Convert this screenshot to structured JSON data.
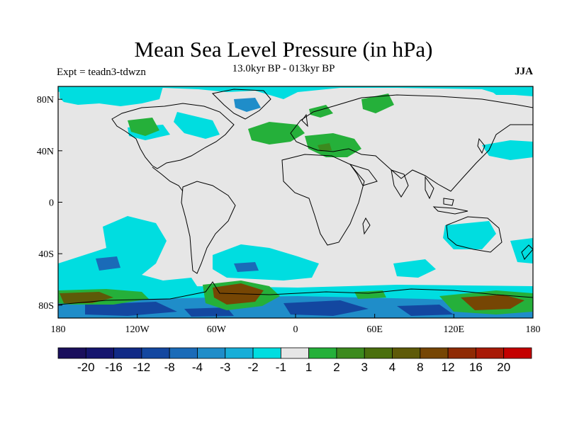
{
  "header": {
    "title": "Mean Sea Level Pressure (in hPa)",
    "experiment": "Expt = teadn3-tdwzn",
    "period": "13.0kyr BP - 013kyr BP",
    "season": "JJA"
  },
  "map": {
    "x_ticks": [
      "180",
      "120W",
      "60W",
      "0",
      "60E",
      "120E",
      "180"
    ],
    "y_ticks": [
      "80N",
      "40N",
      "0",
      "40S",
      "80S"
    ],
    "lon_range": [
      -180,
      180
    ],
    "lat_range": [
      -90,
      90
    ],
    "background_color": "#e6e6e6"
  },
  "colorbar": {
    "colors": [
      "#1a0f5c",
      "#15156e",
      "#112a86",
      "#1347a0",
      "#1a6bb8",
      "#1f8dc9",
      "#18aed8",
      "#00dde0",
      "#e6e6e6",
      "#25b03a",
      "#3c8a1e",
      "#4a6f0e",
      "#5e5a08",
      "#764604",
      "#8f2b04",
      "#a81a06",
      "#c40000"
    ],
    "labels": [
      "-20",
      "-16",
      "-12",
      "-8",
      "-4",
      "-3",
      "-2",
      "-1",
      "1",
      "2",
      "3",
      "4",
      "8",
      "12",
      "16",
      "20"
    ]
  }
}
